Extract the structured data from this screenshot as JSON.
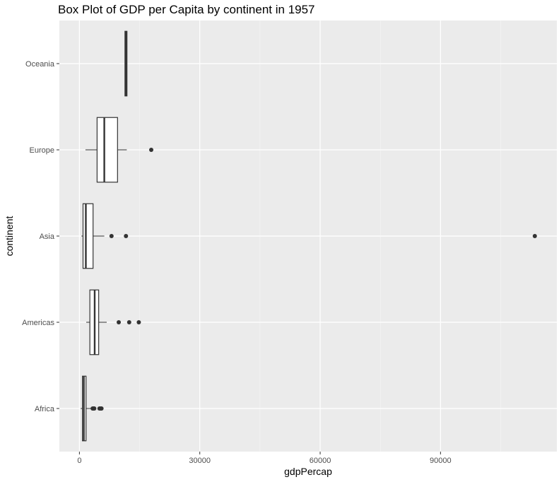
{
  "chart_data": {
    "type": "boxplot",
    "orientation": "horizontal",
    "title": "Box Plot of GDP per Capita by continent in 1957",
    "xlabel": "gdpPercap",
    "ylabel": "continent",
    "xlim": [
      -5000,
      119000
    ],
    "x_ticks": [
      0,
      30000,
      60000,
      90000
    ],
    "x_tick_labels": [
      "0",
      "30000",
      "60000",
      "90000"
    ],
    "grid": true,
    "categories": [
      "Africa",
      "Americas",
      "Asia",
      "Europe",
      "Oceania"
    ],
    "boxes": [
      {
        "category": "Africa",
        "whisker_low": 300,
        "q1": 750,
        "median": 1100,
        "q3": 1650,
        "whisker_high": 3000,
        "outliers": [
          3300,
          3500,
          3700,
          5000,
          5300,
          5500
        ]
      },
      {
        "category": "Americas",
        "whisker_low": 1700,
        "q1": 2600,
        "median": 3800,
        "q3": 4800,
        "whisker_high": 6800,
        "outliers": [
          9800,
          12400,
          14800
        ]
      },
      {
        "category": "Asia",
        "whisker_low": 500,
        "q1": 900,
        "median": 1600,
        "q3": 3400,
        "whisker_high": 6200,
        "outliers": [
          8000,
          11600,
          113500
        ]
      },
      {
        "category": "Europe",
        "whisker_low": 1500,
        "q1": 4400,
        "median": 6200,
        "q3": 9500,
        "whisker_high": 11800,
        "outliers": [
          17900
        ]
      },
      {
        "category": "Oceania",
        "whisker_low": 11300,
        "q1": 11350,
        "median": 11600,
        "q3": 11850,
        "whisker_high": 11900,
        "outliers": []
      }
    ]
  }
}
